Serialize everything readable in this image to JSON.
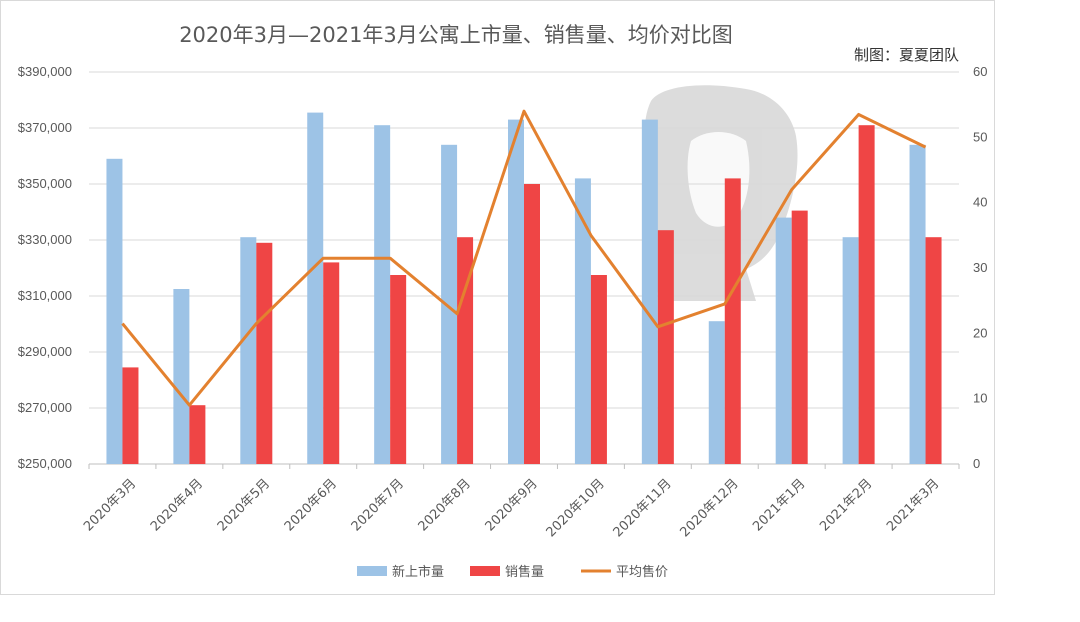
{
  "chart_data": {
    "type": "bar",
    "title": "2020年3月—2021年3月公寓上市量、销售量、均价对比图",
    "maker_label": "制图：夏夏团队",
    "categories": [
      "2020年3月",
      "2020年4月",
      "2020年5月",
      "2020年6月",
      "2020年7月",
      "2020年8月",
      "2020年9月",
      "2020年10月",
      "2020年11月",
      "2020年12月",
      "2021年1月",
      "2021年2月",
      "2021年3月"
    ],
    "y_left": {
      "range": [
        250000,
        390000
      ],
      "ticks": [
        "$250,000",
        "$270,000",
        "$290,000",
        "$310,000",
        "$330,000",
        "$350,000",
        "$370,000",
        "$390,000"
      ]
    },
    "y_right": {
      "range": [
        0,
        60
      ],
      "ticks": [
        "0",
        "10",
        "20",
        "30",
        "40",
        "50",
        "60"
      ]
    },
    "grid": true,
    "legend_position": "bottom",
    "series": [
      {
        "name": "新上市量",
        "type": "bar",
        "axis": "left",
        "color": "#9dc3e6",
        "values": [
          359000,
          312500,
          331000,
          375500,
          371000,
          364000,
          373000,
          352000,
          373000,
          301000,
          338000,
          331000,
          364000
        ]
      },
      {
        "name": "销售量",
        "type": "bar",
        "axis": "left",
        "color": "#ef4545",
        "values": [
          284500,
          271000,
          329000,
          322000,
          317500,
          331000,
          350000,
          317500,
          333500,
          352000,
          340500,
          371000,
          331000
        ]
      },
      {
        "name": "平均售价",
        "type": "line",
        "axis": "right",
        "color": "#e3812f",
        "values": [
          21.5,
          9,
          21.5,
          31.5,
          31.5,
          23,
          54,
          35,
          21,
          24.5,
          42,
          53.5,
          48.5
        ]
      }
    ]
  }
}
